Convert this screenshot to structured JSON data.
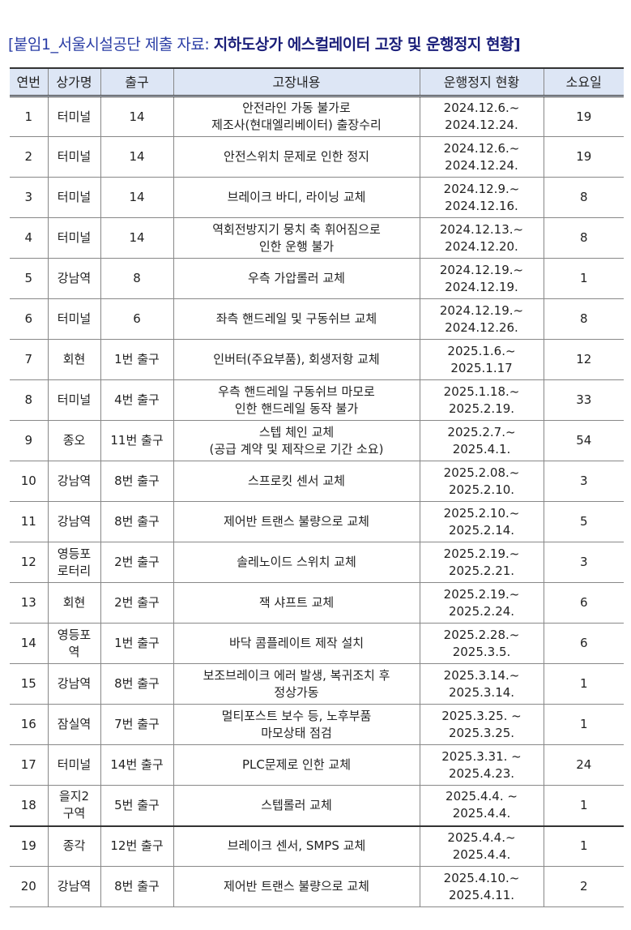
{
  "title": {
    "prefix": "[붙임1_서울시설공단 제출 자료: ",
    "main": "지하도상가 에스컬레이터 고장 및 운행정지 현황]"
  },
  "table": {
    "headers": [
      "연번",
      "상가명",
      "출구",
      "고장내용",
      "운행정지 현황",
      "소요일"
    ],
    "rows": [
      [
        "1",
        "터미널",
        "14",
        "안전라인 가동  불가로\n제조사(현대엘리베이터) 출장수리",
        "2024.12.6.~\n2024.12.24.",
        "19"
      ],
      [
        "2",
        "터미널",
        "14",
        "안전스위치 문제로 인한  정지",
        "2024.12.6.~\n2024.12.24.",
        "19"
      ],
      [
        "3",
        "터미널",
        "14",
        "브레이크 바디, 라이닝  교체",
        "2024.12.9.~\n2024.12.16.",
        "8"
      ],
      [
        "4",
        "터미널",
        "14",
        "역회전방지기 뭉치 축  휘어짐으로\n인한 운행 불가",
        "2024.12.13.~\n2024.12.20.",
        "8"
      ],
      [
        "5",
        "강남역",
        "8",
        "우측 가압롤러 교체",
        "2024.12.19.~\n2024.12.19.",
        "1"
      ],
      [
        "6",
        "터미널",
        "6",
        "좌측 핸드레일 및 구동쉬브 교체",
        "2024.12.19.~\n2024.12.26.",
        "8"
      ],
      [
        "7",
        "회현",
        "1번 출구",
        "인버터(주요부품), 회생저항 교체",
        "2025.1.6.~\n2025.1.17",
        "12"
      ],
      [
        "8",
        "터미널",
        "4번 출구",
        "우측 핸드레일 구동쉬브 마모로\n인한 핸드레일 동작 불가",
        "2025.1.18.~\n2025.2.19.",
        "33"
      ],
      [
        "9",
        "종오",
        "11번 출구",
        "스텝 체인 교체\n(공급 계약 및 제작으로 기간 소요)",
        "2025.2.7.~\n2025.4.1.",
        "54"
      ],
      [
        "10",
        "강남역",
        "8번 출구",
        "스프로킷 센서 교체",
        "2025.2.08.~\n2025.2.10.",
        "3"
      ],
      [
        "11",
        "강남역",
        "8번 출구",
        "제어반 트랜스 불량으로 교체",
        "2025.2.10.~\n2025.2.14.",
        "5"
      ],
      [
        "12",
        "영등포\n로터리",
        "2번 출구",
        "솔레노이드 스위치 교체",
        "2025.2.19.~\n2025.2.21.",
        "3"
      ],
      [
        "13",
        "회현",
        "2번 출구",
        "잭 샤프트 교체",
        "2025.2.19.~\n2025.2.24.",
        "6"
      ],
      [
        "14",
        "영등포\n역",
        "1번 출구",
        "바닥 콤플레이트 제작 설치",
        "2025.2.28.~\n2025.3.5.",
        "6"
      ],
      [
        "15",
        "강남역",
        "8번 출구",
        "보조브레이크 에러 발생, 복귀조치 후\n정상가동",
        "2025.3.14.~\n2025.3.14.",
        "1"
      ],
      [
        "16",
        "잠실역",
        "7번 출구",
        "멀티포스트 보수 등, 노후부품\n마모상태 점검",
        "2025.3.25. ~\n2025.3.25.",
        "1"
      ],
      [
        "17",
        "터미널",
        "14번 출구",
        "PLC문제로 인한 교체",
        "2025.3.31. ~\n2025.4.23.",
        "24"
      ],
      [
        "18",
        "을지2\n구역",
        "5번 출구",
        "스텝롤러 교체",
        "2025.4.4. ~\n2025.4.4.",
        "1"
      ],
      [
        "19",
        "종각",
        "12번 출구",
        "브레이크 센서, SMPS 교체",
        "2025.4.4.~\n2025.4.4.",
        "1"
      ],
      [
        "20",
        "강남역",
        "8번 출구",
        "제어반 트랜스 불량으로 교체",
        "2025.4.10.~\n2025.4.11.",
        "2"
      ]
    ]
  }
}
